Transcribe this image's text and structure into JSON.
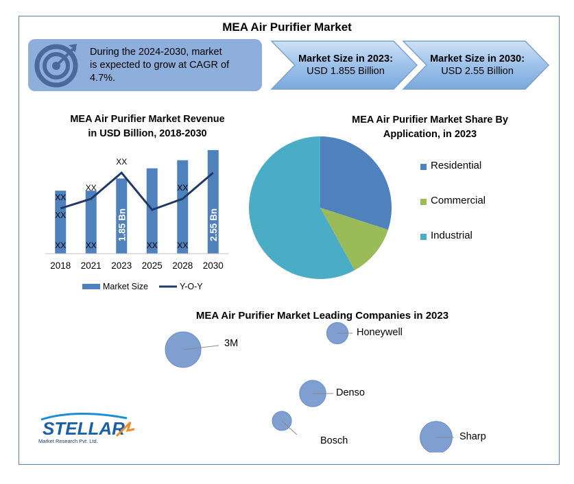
{
  "header": {
    "title": "MEA Air Purifier Market"
  },
  "cagr_box": {
    "text_line1": "During the 2024-2030, market",
    "text_line2": "is expected to grow at CAGR of",
    "text_line3": "4.7%."
  },
  "market_size": [
    {
      "label": "Market Size in 2023:",
      "value": "USD 1.855 Billion"
    },
    {
      "label": "Market Size in 2030:",
      "value": "USD 2.55 Billion"
    }
  ],
  "colors": {
    "accent": "#4f81bd",
    "line": "#1f3864",
    "residential": "#4f81bd",
    "commercial": "#9bbb59",
    "industrial": "#4bacc6",
    "bubble": "#7f9fd0",
    "panel": "#8eaedb",
    "arrow": "#9ec2ea"
  },
  "icons": {
    "target": "target-icon",
    "logo": "stellar-logo"
  },
  "logo": {
    "name": "STELLAR",
    "tagline": "Market Research Pvt. Ltd."
  },
  "chart_data": [
    {
      "type": "bar",
      "title_line1": "MEA Air Purifier Market Revenue",
      "title_line2": "in USD Billion, 2018-2030",
      "categories": [
        "2018",
        "2021",
        "2023",
        "2025",
        "2028",
        "2030"
      ],
      "series": [
        {
          "name": "Market Size",
          "type": "bar",
          "values": [
            1.55,
            1.55,
            1.85,
            2.1,
            2.3,
            2.55
          ],
          "labels": [
            "XX",
            "XX",
            "1.85 Bn",
            "XX",
            "XX",
            "2.55 Bn"
          ]
        },
        {
          "name": "Y-O-Y",
          "type": "line",
          "values": [
            3.3,
            4.0,
            5.9,
            3.2,
            4.0,
            5.9
          ],
          "labels": [
            "XX",
            "XX",
            "XX",
            "",
            "XX",
            ""
          ]
        }
      ],
      "ylim": [
        0,
        2.7
      ],
      "legend": "bottom"
    },
    {
      "type": "pie",
      "title_line1": "MEA Air Purifier Market Share By",
      "title_line2": "Application, in 2023",
      "categories": [
        "Residential",
        "Commercial",
        "Industrial"
      ],
      "values": [
        30,
        12,
        58
      ],
      "legend": "right"
    },
    {
      "type": "scatter",
      "title": "MEA Air Purifier Market Leading Companies in 2023",
      "points": [
        {
          "name": "3M",
          "x": 1,
          "y": 4.2,
          "size": 5
        },
        {
          "name": "Honeywell",
          "x": 3.5,
          "y": 4.8,
          "size": 3
        },
        {
          "name": "Denso",
          "x": 3.1,
          "y": 2.6,
          "size": 3.7
        },
        {
          "name": "Bosch",
          "x": 2.6,
          "y": 1.6,
          "size": 2.7
        },
        {
          "name": "Sharp",
          "x": 5.1,
          "y": 1.0,
          "size": 4.5
        }
      ]
    }
  ]
}
